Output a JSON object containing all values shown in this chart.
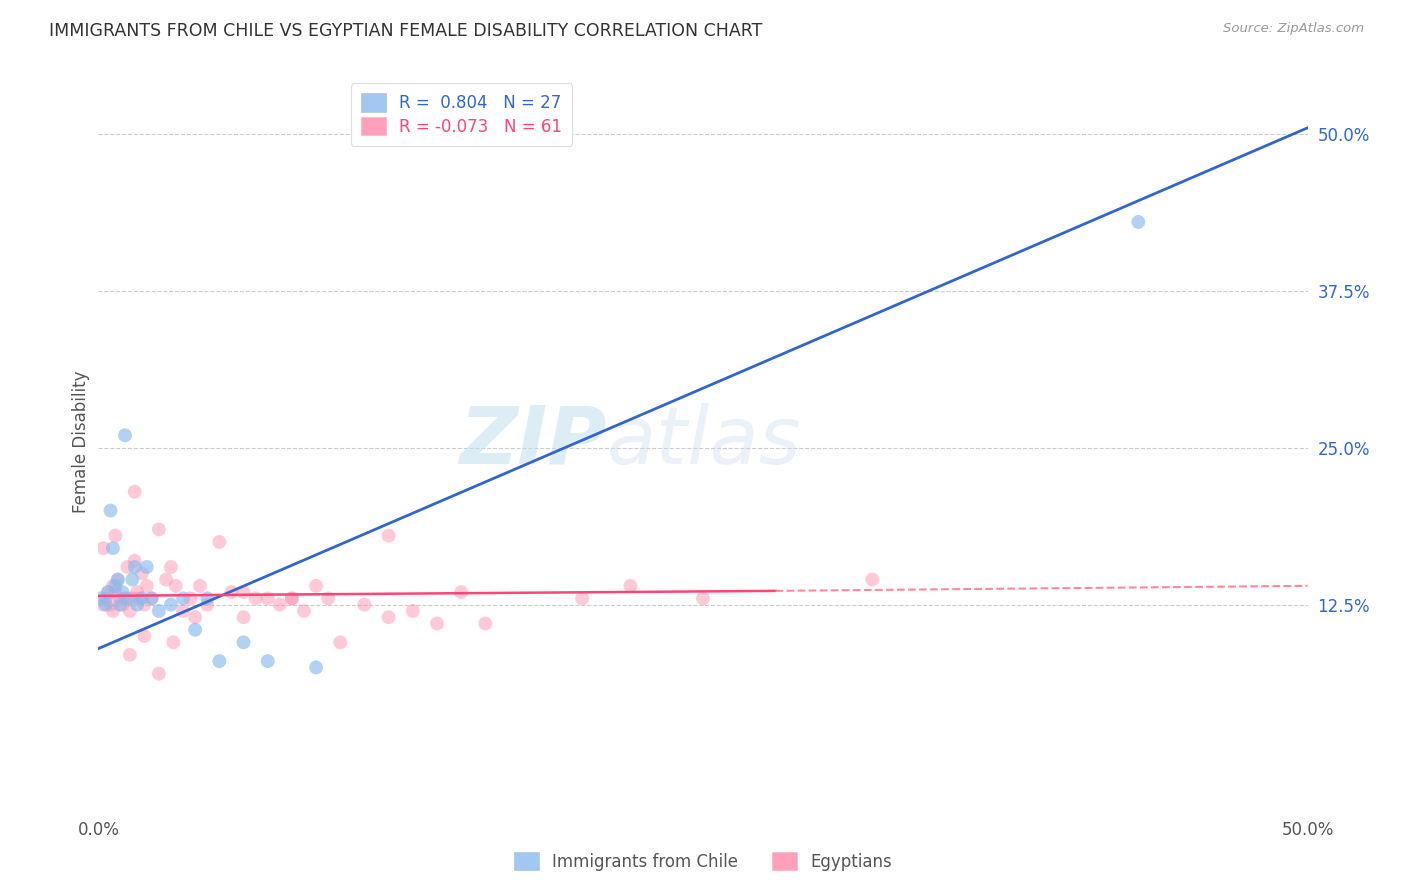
{
  "title": "IMMIGRANTS FROM CHILE VS EGYPTIAN FEMALE DISABILITY CORRELATION CHART",
  "source": "Source: ZipAtlas.com",
  "ylabel": "Female Disability",
  "xlim": [
    0.0,
    0.5
  ],
  "ylim": [
    -0.04,
    0.55
  ],
  "xtick_positions": [
    0.0,
    0.1,
    0.2,
    0.3,
    0.4,
    0.5
  ],
  "xticklabels": [
    "0.0%",
    "",
    "",
    "",
    "",
    "50.0%"
  ],
  "yticks_right": [
    0.125,
    0.25,
    0.375,
    0.5
  ],
  "ytick_labels_right": [
    "12.5%",
    "25.0%",
    "37.5%",
    "50.0%"
  ],
  "watermark_zip": "ZIP",
  "watermark_atlas": "atlas",
  "legend_line1": "R =  0.804   N = 27",
  "legend_line2": "R = -0.073   N = 61",
  "blue_scatter_color": "#88BBEE",
  "pink_scatter_color": "#FF88AA",
  "line_blue_color": "#3366CC",
  "line_pink_solid_color": "#FF4477",
  "line_pink_dash_color": "#FF8899",
  "blue_regression": [
    0.0,
    0.09,
    0.5,
    0.505
  ],
  "pink_regression_solid": [
    0.0,
    0.132,
    0.28,
    0.136
  ],
  "pink_regression_dash": [
    0.28,
    0.136,
    0.5,
    0.14
  ],
  "chile_x": [
    0.001,
    0.003,
    0.004,
    0.005,
    0.006,
    0.007,
    0.008,
    0.009,
    0.01,
    0.011,
    0.012,
    0.014,
    0.015,
    0.016,
    0.018,
    0.02,
    0.022,
    0.025,
    0.03,
    0.035,
    0.04,
    0.045,
    0.05,
    0.06,
    0.07,
    0.09,
    0.43
  ],
  "chile_y": [
    0.13,
    0.125,
    0.135,
    0.2,
    0.17,
    0.14,
    0.145,
    0.125,
    0.135,
    0.26,
    0.13,
    0.145,
    0.155,
    0.125,
    0.13,
    0.155,
    0.13,
    0.12,
    0.125,
    0.13,
    0.105,
    0.13,
    0.08,
    0.095,
    0.08,
    0.075,
    0.43
  ],
  "egypt_x": [
    0.002,
    0.003,
    0.004,
    0.005,
    0.006,
    0.006,
    0.007,
    0.008,
    0.009,
    0.01,
    0.011,
    0.012,
    0.013,
    0.014,
    0.015,
    0.015,
    0.016,
    0.017,
    0.018,
    0.019,
    0.02,
    0.022,
    0.025,
    0.028,
    0.03,
    0.032,
    0.035,
    0.038,
    0.04,
    0.042,
    0.045,
    0.05,
    0.055,
    0.06,
    0.065,
    0.07,
    0.075,
    0.08,
    0.085,
    0.09,
    0.095,
    0.1,
    0.11,
    0.12,
    0.13,
    0.14,
    0.15,
    0.16,
    0.2,
    0.22,
    0.25,
    0.002,
    0.007,
    0.013,
    0.019,
    0.025,
    0.031,
    0.06,
    0.08,
    0.12,
    0.32
  ],
  "egypt_y": [
    0.125,
    0.13,
    0.135,
    0.125,
    0.12,
    0.14,
    0.135,
    0.145,
    0.13,
    0.125,
    0.13,
    0.155,
    0.12,
    0.13,
    0.215,
    0.16,
    0.135,
    0.13,
    0.15,
    0.125,
    0.14,
    0.13,
    0.185,
    0.145,
    0.155,
    0.14,
    0.12,
    0.13,
    0.115,
    0.14,
    0.125,
    0.175,
    0.135,
    0.115,
    0.13,
    0.13,
    0.125,
    0.13,
    0.12,
    0.14,
    0.13,
    0.095,
    0.125,
    0.115,
    0.12,
    0.11,
    0.135,
    0.11,
    0.13,
    0.14,
    0.13,
    0.17,
    0.18,
    0.085,
    0.1,
    0.07,
    0.095,
    0.135,
    0.13,
    0.18,
    0.145
  ],
  "background_color": "#FFFFFF",
  "grid_color": "#CCCCCC",
  "scatter_size": 100,
  "scatter_alpha_blue": 0.65,
  "scatter_alpha_pink": 0.45
}
